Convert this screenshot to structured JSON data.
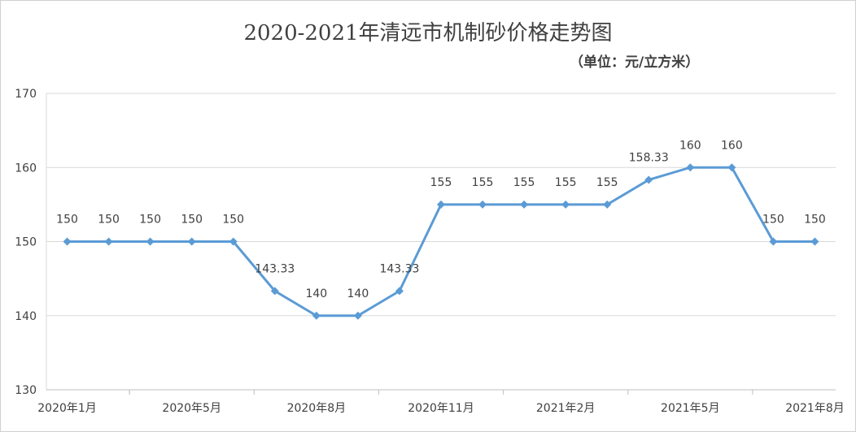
{
  "chart_data": {
    "type": "line",
    "title": "2020-2021年清远市机制砂价格走势图",
    "subtitle": "（单位：元/立方米）",
    "x_tick_labels": [
      "2020年1月",
      "2020年5月",
      "2020年8月",
      "2020年11月",
      "2021年2月",
      "2021年5月",
      "2021年8月"
    ],
    "y_ticks": [
      "130",
      "140",
      "150",
      "160",
      "170"
    ],
    "ylim": [
      130,
      170
    ],
    "grid": true,
    "series": [
      {
        "values": [
          150,
          150,
          150,
          150,
          150,
          143.33,
          140,
          140,
          143.33,
          155,
          155,
          155,
          155,
          155,
          158.33,
          160,
          160,
          150,
          150
        ],
        "data_labels": [
          "150",
          "150",
          "150",
          "150",
          "150",
          "143.33",
          "140",
          "140",
          "143.33",
          "155",
          "155",
          "155",
          "155",
          "155",
          "158.33",
          "160",
          "160",
          "150",
          "150"
        ],
        "color": "#5B9BD5"
      }
    ]
  }
}
